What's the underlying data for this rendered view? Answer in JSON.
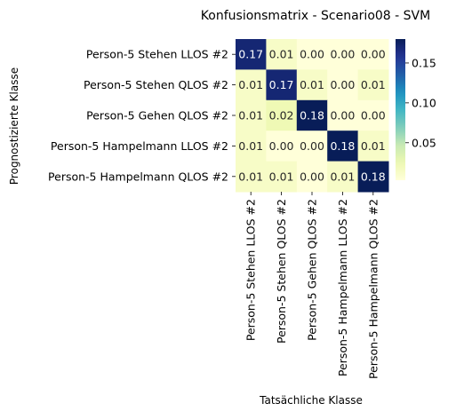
{
  "chart_data": {
    "type": "heatmap",
    "title": "Konfusionsmatrix - Scenario08 - SVM",
    "xlabel": "Tatsächliche Klasse",
    "ylabel": "Prognostizierte Klasse",
    "x_categories": [
      "Person-5 Stehen LLOS #2",
      "Person-5 Stehen QLOS #2",
      "Person-5 Gehen QLOS #2",
      "Person-5 Hampelmann LLOS #2",
      "Person-5 Hampelmann QLOS #2"
    ],
    "y_categories": [
      "Person-5 Stehen LLOS #2",
      "Person-5 Stehen QLOS #2",
      "Person-5 Gehen QLOS #2",
      "Person-5 Hampelmann LLOS #2",
      "Person-5 Hampelmann QLOS #2"
    ],
    "values": [
      [
        0.17,
        0.01,
        0.0,
        0.0,
        0.0
      ],
      [
        0.01,
        0.17,
        0.01,
        0.0,
        0.01
      ],
      [
        0.01,
        0.02,
        0.18,
        0.0,
        0.0
      ],
      [
        0.01,
        0.0,
        0.0,
        0.18,
        0.01
      ],
      [
        0.01,
        0.01,
        0.0,
        0.01,
        0.18
      ]
    ],
    "cell_labels": [
      [
        "0.17",
        "0.01",
        "0.00",
        "0.00",
        "0.00"
      ],
      [
        "0.01",
        "0.17",
        "0.01",
        "0.00",
        "0.01"
      ],
      [
        "0.01",
        "0.02",
        "0.18",
        "0.00",
        "0.00"
      ],
      [
        "0.01",
        "0.00",
        "0.00",
        "0.18",
        "0.01"
      ],
      [
        "0.01",
        "0.01",
        "0.00",
        "0.01",
        "0.18"
      ]
    ],
    "colormap": "YlGnBu",
    "color_range": [
      0,
      0.18
    ],
    "colorbar": {
      "ticks": [
        0.05,
        0.1,
        0.15
      ],
      "tick_labels": [
        "0.05",
        "0.10",
        "0.15"
      ]
    },
    "grid": false,
    "legend": "colorbar-right"
  }
}
